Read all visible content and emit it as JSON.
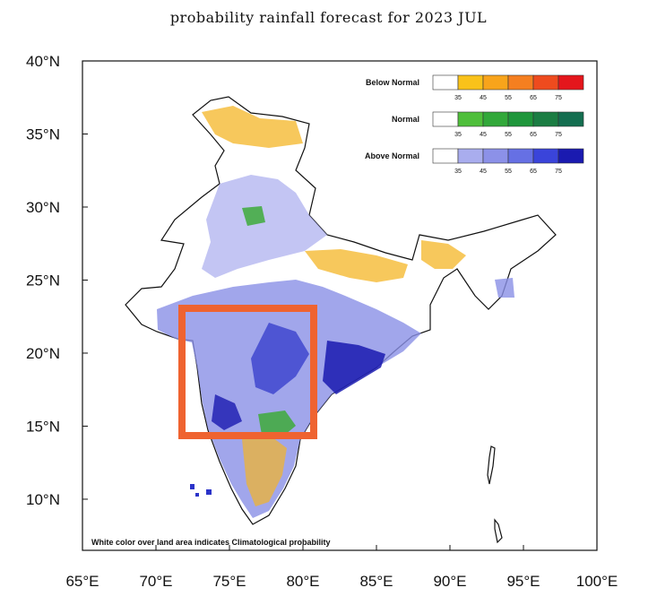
{
  "title": "probability rainfall forecast for 2023 JUL",
  "axes": {
    "x_ticks": [
      "65°E",
      "70°E",
      "75°E",
      "80°E",
      "85°E",
      "90°E",
      "95°E",
      "100°E"
    ],
    "y_ticks": [
      "40°N",
      "35°N",
      "30°N",
      "25°N",
      "20°N",
      "15°N",
      "10°N"
    ],
    "lon_range": [
      65,
      100
    ],
    "lat_range": [
      6.5,
      40
    ]
  },
  "legend": [
    {
      "title": "Below Normal",
      "ticks": [
        "35",
        "45",
        "55",
        "65",
        "75"
      ],
      "colors": [
        "#ffffff",
        "#f9c21a",
        "#f8a41b",
        "#f57f20",
        "#ee4b1e",
        "#e4161c"
      ]
    },
    {
      "title": "Normal",
      "ticks": [
        "35",
        "45",
        "55",
        "65",
        "75"
      ],
      "colors": [
        "#ffffff",
        "#4fbf3b",
        "#32a83a",
        "#1f963b",
        "#1b7d43",
        "#146e50"
      ]
    },
    {
      "title": "Above Normal",
      "ticks": [
        "35",
        "45",
        "55",
        "65",
        "75"
      ],
      "colors": [
        "#ffffff",
        "#a9adee",
        "#8c91e8",
        "#6670e4",
        "#3a44da",
        "#1a1ab0"
      ]
    }
  ],
  "note": "White color over land area indicates Climatological probability",
  "highlight_box": {
    "lon_range": [
      72,
      81
    ],
    "lat_range": [
      14.5,
      23
    ],
    "color": "#ef6330"
  },
  "colors": {
    "above": "#8a90e6",
    "above_dark": "#2b33c9",
    "below": "#f4b526",
    "normal": "#3eaa3a"
  }
}
